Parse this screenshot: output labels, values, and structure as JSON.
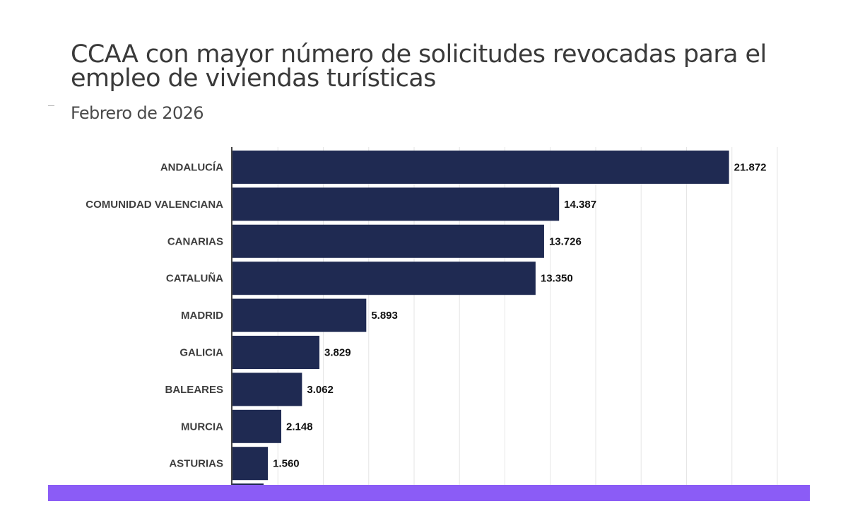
{
  "chart_data": {
    "type": "bar",
    "orientation": "horizontal",
    "title": "CCAA con mayor número de solicitudes revocadas para el empleo de viviendas turísticas",
    "subtitle": "Febrero de 2026",
    "categories": [
      "ANDALUCÍA",
      "COMUNIDAD VALENCIANA",
      "CANARIAS",
      "CATALUÑA",
      "MADRID",
      "GALICIA",
      "BALEARES",
      "MURCIA",
      "ASTURIAS"
    ],
    "values": [
      21872,
      14387,
      13726,
      13350,
      5893,
      3829,
      3062,
      2148,
      1560
    ],
    "value_labels": [
      "21.872",
      "14.387",
      "13.726",
      "13.350",
      "5.893",
      "3.829",
      "3.062",
      "2.148",
      "1.560"
    ],
    "xlim": [
      0,
      24000
    ],
    "grid": true,
    "bar_color": "#1f2a52",
    "footer_color": "#8b5cf6"
  }
}
